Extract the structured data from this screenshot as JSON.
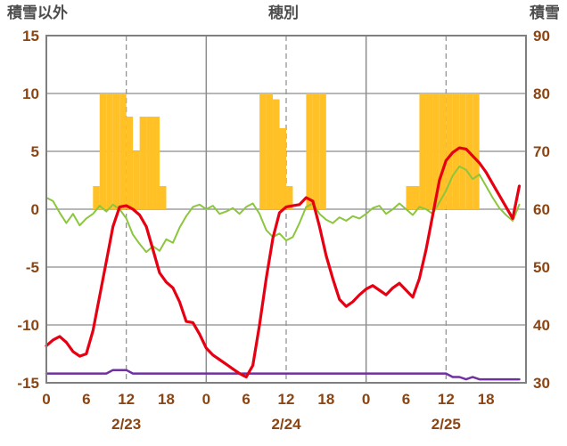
{
  "header": {
    "left_label": "積雪以外",
    "title": "穂別",
    "right_label": "積雪"
  },
  "colors": {
    "axis_text": "#8b4513",
    "header_text": "#4d4d4d",
    "grid": "#8c8c8c",
    "border": "#7f7f7f",
    "bar": "#ffc125",
    "red_line": "#e60012",
    "green_line": "#8cc63f",
    "purple_line": "#7030a0",
    "background": "#ffffff"
  },
  "chart_data": {
    "type": "line",
    "title": "穂別",
    "left_axis_label": "積雪以外",
    "right_axis_label": "積雪",
    "hours_range": [
      0,
      72
    ],
    "left_ylim": [
      -15,
      15
    ],
    "right_ylim": [
      30,
      90
    ],
    "left_ticks": [
      15,
      10,
      5,
      0,
      -5,
      -10,
      -15
    ],
    "right_ticks": [
      90,
      80,
      70,
      60,
      50,
      40,
      30
    ],
    "day_boundary_hours": [
      24,
      48
    ],
    "noon_dashed_hours": [
      12,
      36,
      60
    ],
    "hour_tick_positions": [
      0,
      6,
      12,
      18,
      24,
      30,
      36,
      42,
      48,
      54,
      60,
      66
    ],
    "hour_tick_labels": [
      "0",
      "6",
      "12",
      "18",
      "0",
      "6",
      "12",
      "18",
      "0",
      "6",
      "12",
      "18"
    ],
    "date_labels": [
      {
        "label": "2/23",
        "hour": 12
      },
      {
        "label": "2/24",
        "hour": 36
      },
      {
        "label": "2/25",
        "hour": 60
      }
    ],
    "bars": {
      "name": "sunshine-bars",
      "axis": "left",
      "color": "#ffc125",
      "values": [
        0,
        0,
        0,
        0,
        0,
        0,
        0,
        2,
        10,
        10,
        10,
        10,
        8,
        5,
        8,
        8,
        8,
        2,
        0,
        0,
        0,
        0,
        0,
        0,
        0,
        0,
        0,
        0,
        0,
        0,
        0,
        0,
        10,
        10,
        9.5,
        7,
        2,
        0,
        0,
        10,
        10,
        10,
        0,
        0,
        0,
        0,
        0,
        0,
        0,
        0,
        0,
        0,
        0,
        0,
        2,
        2,
        10,
        10,
        10,
        10,
        10,
        10,
        10,
        10,
        10,
        0,
        0,
        0,
        0,
        0,
        0,
        0
      ]
    },
    "series": [
      {
        "name": "green-line",
        "axis": "left",
        "color": "#8cc63f",
        "width": 2,
        "values": [
          1.0,
          0.7,
          -0.3,
          -1.2,
          -0.4,
          -1.4,
          -0.8,
          -0.4,
          0.3,
          -0.2,
          0.4,
          0.0,
          -0.8,
          -2.2,
          -3.0,
          -3.7,
          -3.2,
          -3.6,
          -2.6,
          -2.9,
          -1.6,
          -0.6,
          0.2,
          0.4,
          0.0,
          0.3,
          -0.4,
          -0.2,
          0.1,
          -0.4,
          0.2,
          0.5,
          -0.4,
          -1.8,
          -2.4,
          -2.1,
          -2.7,
          -2.4,
          -1.2,
          0.2,
          0.5,
          -0.4,
          -0.9,
          -1.2,
          -0.7,
          -1.0,
          -0.6,
          -0.8,
          -0.4,
          0.1,
          0.3,
          -0.4,
          0.0,
          0.5,
          0.0,
          -0.5,
          0.2,
          0.0,
          -0.4,
          0.6,
          1.6,
          2.9,
          3.7,
          3.4,
          2.6,
          3.0,
          2.0,
          1.0,
          0.1,
          -0.5,
          -1.0,
          0.4
        ]
      },
      {
        "name": "purple-line",
        "axis": "right",
        "color": "#7030a0",
        "width": 2.5,
        "values": [
          31.6,
          31.6,
          31.6,
          31.6,
          31.6,
          31.6,
          31.6,
          31.6,
          31.6,
          31.6,
          32.2,
          32.2,
          32.2,
          31.6,
          31.6,
          31.6,
          31.6,
          31.6,
          31.6,
          31.6,
          31.6,
          31.6,
          31.6,
          31.6,
          31.6,
          31.6,
          31.6,
          31.6,
          31.6,
          31.6,
          31.6,
          31.6,
          31.6,
          31.6,
          31.6,
          31.6,
          31.6,
          31.6,
          31.6,
          31.6,
          31.6,
          31.6,
          31.6,
          31.6,
          31.6,
          31.6,
          31.6,
          31.6,
          31.6,
          31.6,
          31.6,
          31.6,
          31.6,
          31.6,
          31.6,
          31.6,
          31.6,
          31.6,
          31.6,
          31.6,
          31.6,
          31.0,
          31.0,
          30.6,
          31.0,
          30.6,
          30.6,
          30.6,
          30.6,
          30.6,
          30.6,
          30.6
        ]
      },
      {
        "name": "red-line",
        "axis": "left",
        "color": "#e60012",
        "width": 3.2,
        "values": [
          -11.8,
          -11.3,
          -11.0,
          -11.5,
          -12.3,
          -12.7,
          -12.5,
          -10.5,
          -7.5,
          -4.5,
          -1.5,
          0.2,
          0.3,
          0.0,
          -0.5,
          -1.5,
          -3.5,
          -5.5,
          -6.3,
          -6.8,
          -8.0,
          -9.7,
          -9.8,
          -10.8,
          -12.0,
          -12.6,
          -13.0,
          -13.4,
          -13.8,
          -14.2,
          -14.5,
          -13.5,
          -10.0,
          -6.0,
          -2.5,
          -0.3,
          0.2,
          0.3,
          0.4,
          1.0,
          0.7,
          -1.5,
          -4.0,
          -6.0,
          -7.8,
          -8.4,
          -8.0,
          -7.4,
          -6.9,
          -6.6,
          -7.0,
          -7.4,
          -6.8,
          -6.4,
          -7.0,
          -7.6,
          -6.0,
          -3.5,
          -0.5,
          2.5,
          4.2,
          4.9,
          5.3,
          5.2,
          4.6,
          4.0,
          3.2,
          2.2,
          1.2,
          0.2,
          -0.8,
          2.0
        ]
      }
    ]
  }
}
